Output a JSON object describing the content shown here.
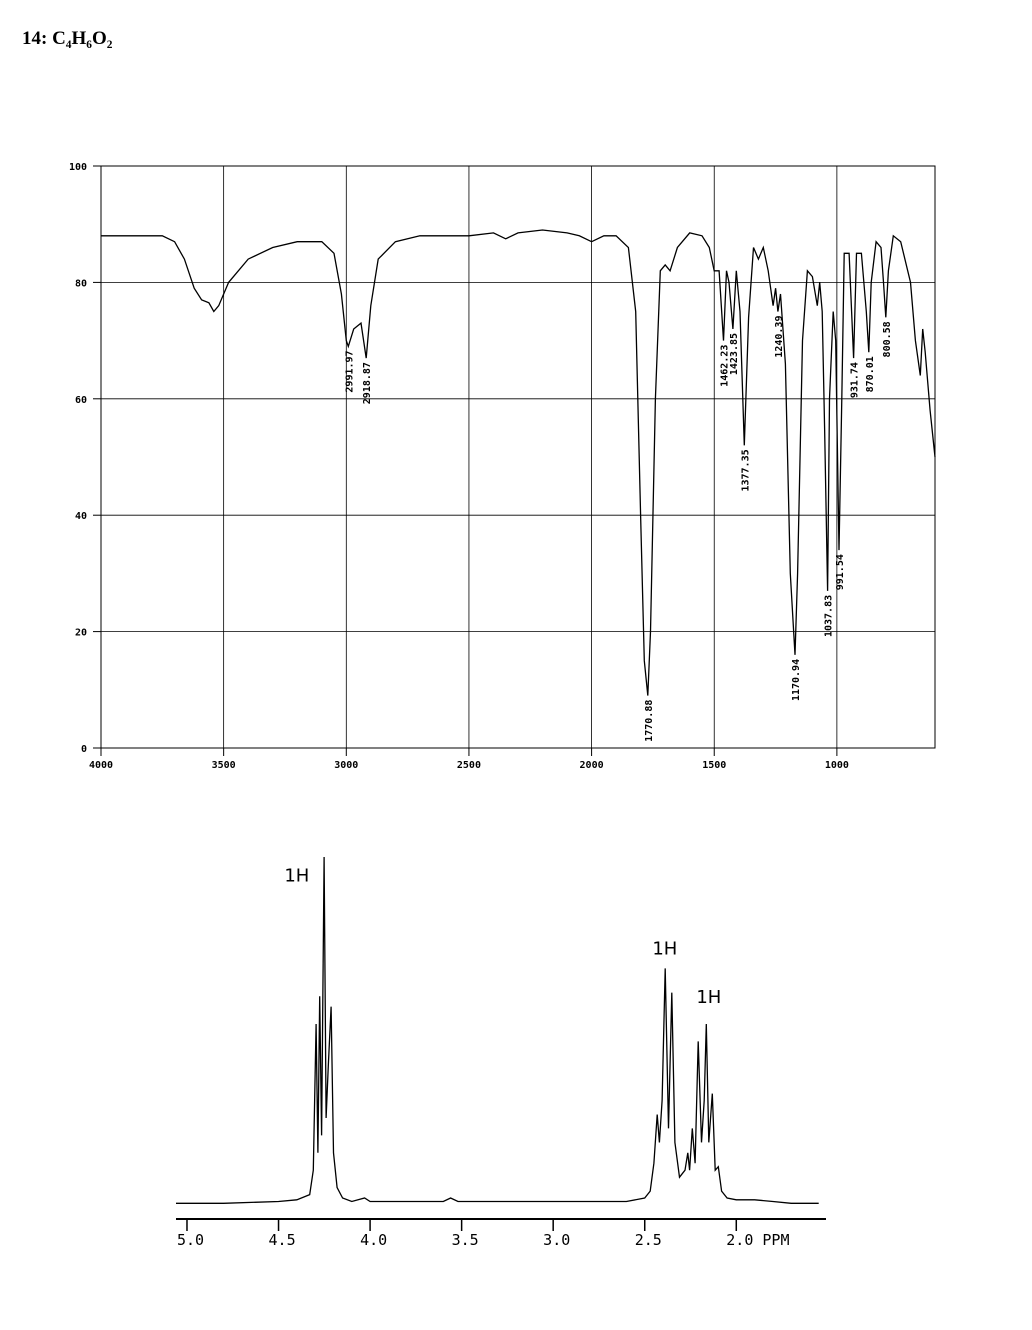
{
  "title": "14: C₄H₆O₂",
  "chart_data": [
    {
      "type": "line",
      "color": "#000000",
      "grid": true,
      "xlim": [
        4000,
        600
      ],
      "ylim": [
        0,
        100
      ],
      "xticks": [
        4000,
        3500,
        3000,
        2500,
        2000,
        1500,
        1000
      ],
      "yticks": [
        0,
        20,
        40,
        60,
        80,
        100
      ],
      "x": [
        4000,
        3750,
        3700,
        3660,
        3620,
        3590,
        3560,
        3540,
        3520,
        3480,
        3400,
        3300,
        3200,
        3100,
        3050,
        3020,
        3000,
        2991.97,
        2970,
        2940,
        2918.87,
        2900,
        2870,
        2800,
        2700,
        2500,
        2400,
        2350,
        2300,
        2200,
        2100,
        2050,
        2000,
        1950,
        1900,
        1850,
        1820,
        1800,
        1785,
        1770.88,
        1760,
        1740,
        1720,
        1700,
        1680,
        1650,
        1600,
        1550,
        1520,
        1500,
        1480,
        1462.23,
        1450,
        1440,
        1423.85,
        1410,
        1395,
        1377.35,
        1360,
        1340,
        1320,
        1300,
        1280,
        1260,
        1250,
        1240.39,
        1230,
        1210,
        1190,
        1170.94,
        1160,
        1140,
        1120,
        1100,
        1080,
        1070,
        1060,
        1050,
        1037.83,
        1030,
        1015,
        1005,
        991.54,
        980,
        970,
        950,
        931.74,
        920,
        900,
        880,
        870.01,
        860,
        840,
        820,
        810,
        800.58,
        790,
        770,
        740,
        700,
        680,
        660,
        650,
        640,
        620,
        600
      ],
      "values": [
        88,
        88,
        87,
        84,
        79,
        77,
        76.5,
        75,
        76,
        80,
        84,
        86,
        87,
        87,
        85,
        78,
        70,
        69,
        72,
        73,
        67,
        76,
        84,
        87,
        88,
        88,
        88.5,
        87.5,
        88.5,
        89,
        88.5,
        88,
        87,
        88,
        88,
        86,
        75,
        40,
        15,
        9,
        20,
        60,
        82,
        83,
        82,
        86,
        88.5,
        88,
        86,
        82,
        82,
        70,
        82,
        80,
        72,
        82,
        75,
        52,
        74,
        86,
        84,
        86,
        82,
        76,
        79,
        75,
        78,
        66,
        30,
        16,
        30,
        70,
        82,
        81,
        76,
        80,
        75,
        55,
        27,
        60,
        75,
        70,
        34,
        60,
        85,
        85,
        67,
        85,
        85,
        75,
        68,
        80,
        87,
        86,
        80,
        74,
        82,
        88,
        87,
        80,
        70,
        64,
        72,
        68,
        58,
        50
      ],
      "annotations": [
        {
          "x": 2991.97,
          "y": 69
        },
        {
          "x": 2918.87,
          "y": 67
        },
        {
          "x": 1770.88,
          "y": 9
        },
        {
          "x": 1462.23,
          "y": 70
        },
        {
          "x": 1423.85,
          "y": 72
        },
        {
          "x": 1377.35,
          "y": 52
        },
        {
          "x": 1240.39,
          "y": 75
        },
        {
          "x": 1170.94,
          "y": 16
        },
        {
          "x": 1037.83,
          "y": 27
        },
        {
          "x": 991.54,
          "y": 34
        },
        {
          "x": 931.74,
          "y": 67
        },
        {
          "x": 870.01,
          "y": 68
        },
        {
          "x": 800.58,
          "y": 74
        }
      ]
    },
    {
      "type": "line",
      "color": "#000000",
      "xlim": [
        5.06,
        1.51
      ],
      "ylim": [
        0,
        100
      ],
      "xticks": [
        {
          "value": 5,
          "label": "5.0"
        },
        {
          "value": 4.5,
          "label": "4.5"
        },
        {
          "value": 4,
          "label": "4.0"
        },
        {
          "value": 3.5,
          "label": "3.5"
        },
        {
          "value": 3,
          "label": "3.0"
        },
        {
          "value": 2.5,
          "label": "2.5"
        },
        {
          "value": 2,
          "label": "2.0 PPM"
        }
      ],
      "x": [
        5.06,
        4.8,
        4.5,
        4.4,
        4.33,
        4.31,
        4.295,
        4.285,
        4.275,
        4.265,
        4.251,
        4.24,
        4.228,
        4.213,
        4.2,
        4.18,
        4.15,
        4.1,
        4.03,
        4.0,
        3.6,
        3.56,
        3.52,
        3.0,
        2.6,
        2.5,
        2.47,
        2.45,
        2.432,
        2.42,
        2.405,
        2.388,
        2.37,
        2.352,
        2.335,
        2.31,
        2.28,
        2.265,
        2.255,
        2.24,
        2.225,
        2.208,
        2.19,
        2.175,
        2.164,
        2.15,
        2.131,
        2.115,
        2.098,
        2.08,
        2.05,
        2.0,
        1.9,
        1.8,
        1.7,
        1.55
      ],
      "values": [
        0.5,
        0.5,
        1,
        1.5,
        3,
        10,
        52,
        15,
        60,
        20,
        100,
        25,
        40,
        57,
        15,
        5,
        2,
        1,
        2,
        1,
        1,
        2,
        1,
        1,
        1,
        2,
        4,
        12,
        26,
        18,
        30,
        68,
        22,
        61,
        18,
        8,
        10,
        15,
        10,
        22,
        12,
        47,
        18,
        30,
        52,
        18,
        32,
        10,
        11,
        4,
        2,
        1.5,
        1.5,
        1,
        0.5,
        0.5
      ],
      "annotations": [
        {
          "text": "1H",
          "x": 4.4,
          "y": 93
        },
        {
          "text": "1H",
          "x": 2.39,
          "y": 72
        },
        {
          "text": "1H",
          "x": 2.15,
          "y": 58
        }
      ]
    }
  ]
}
